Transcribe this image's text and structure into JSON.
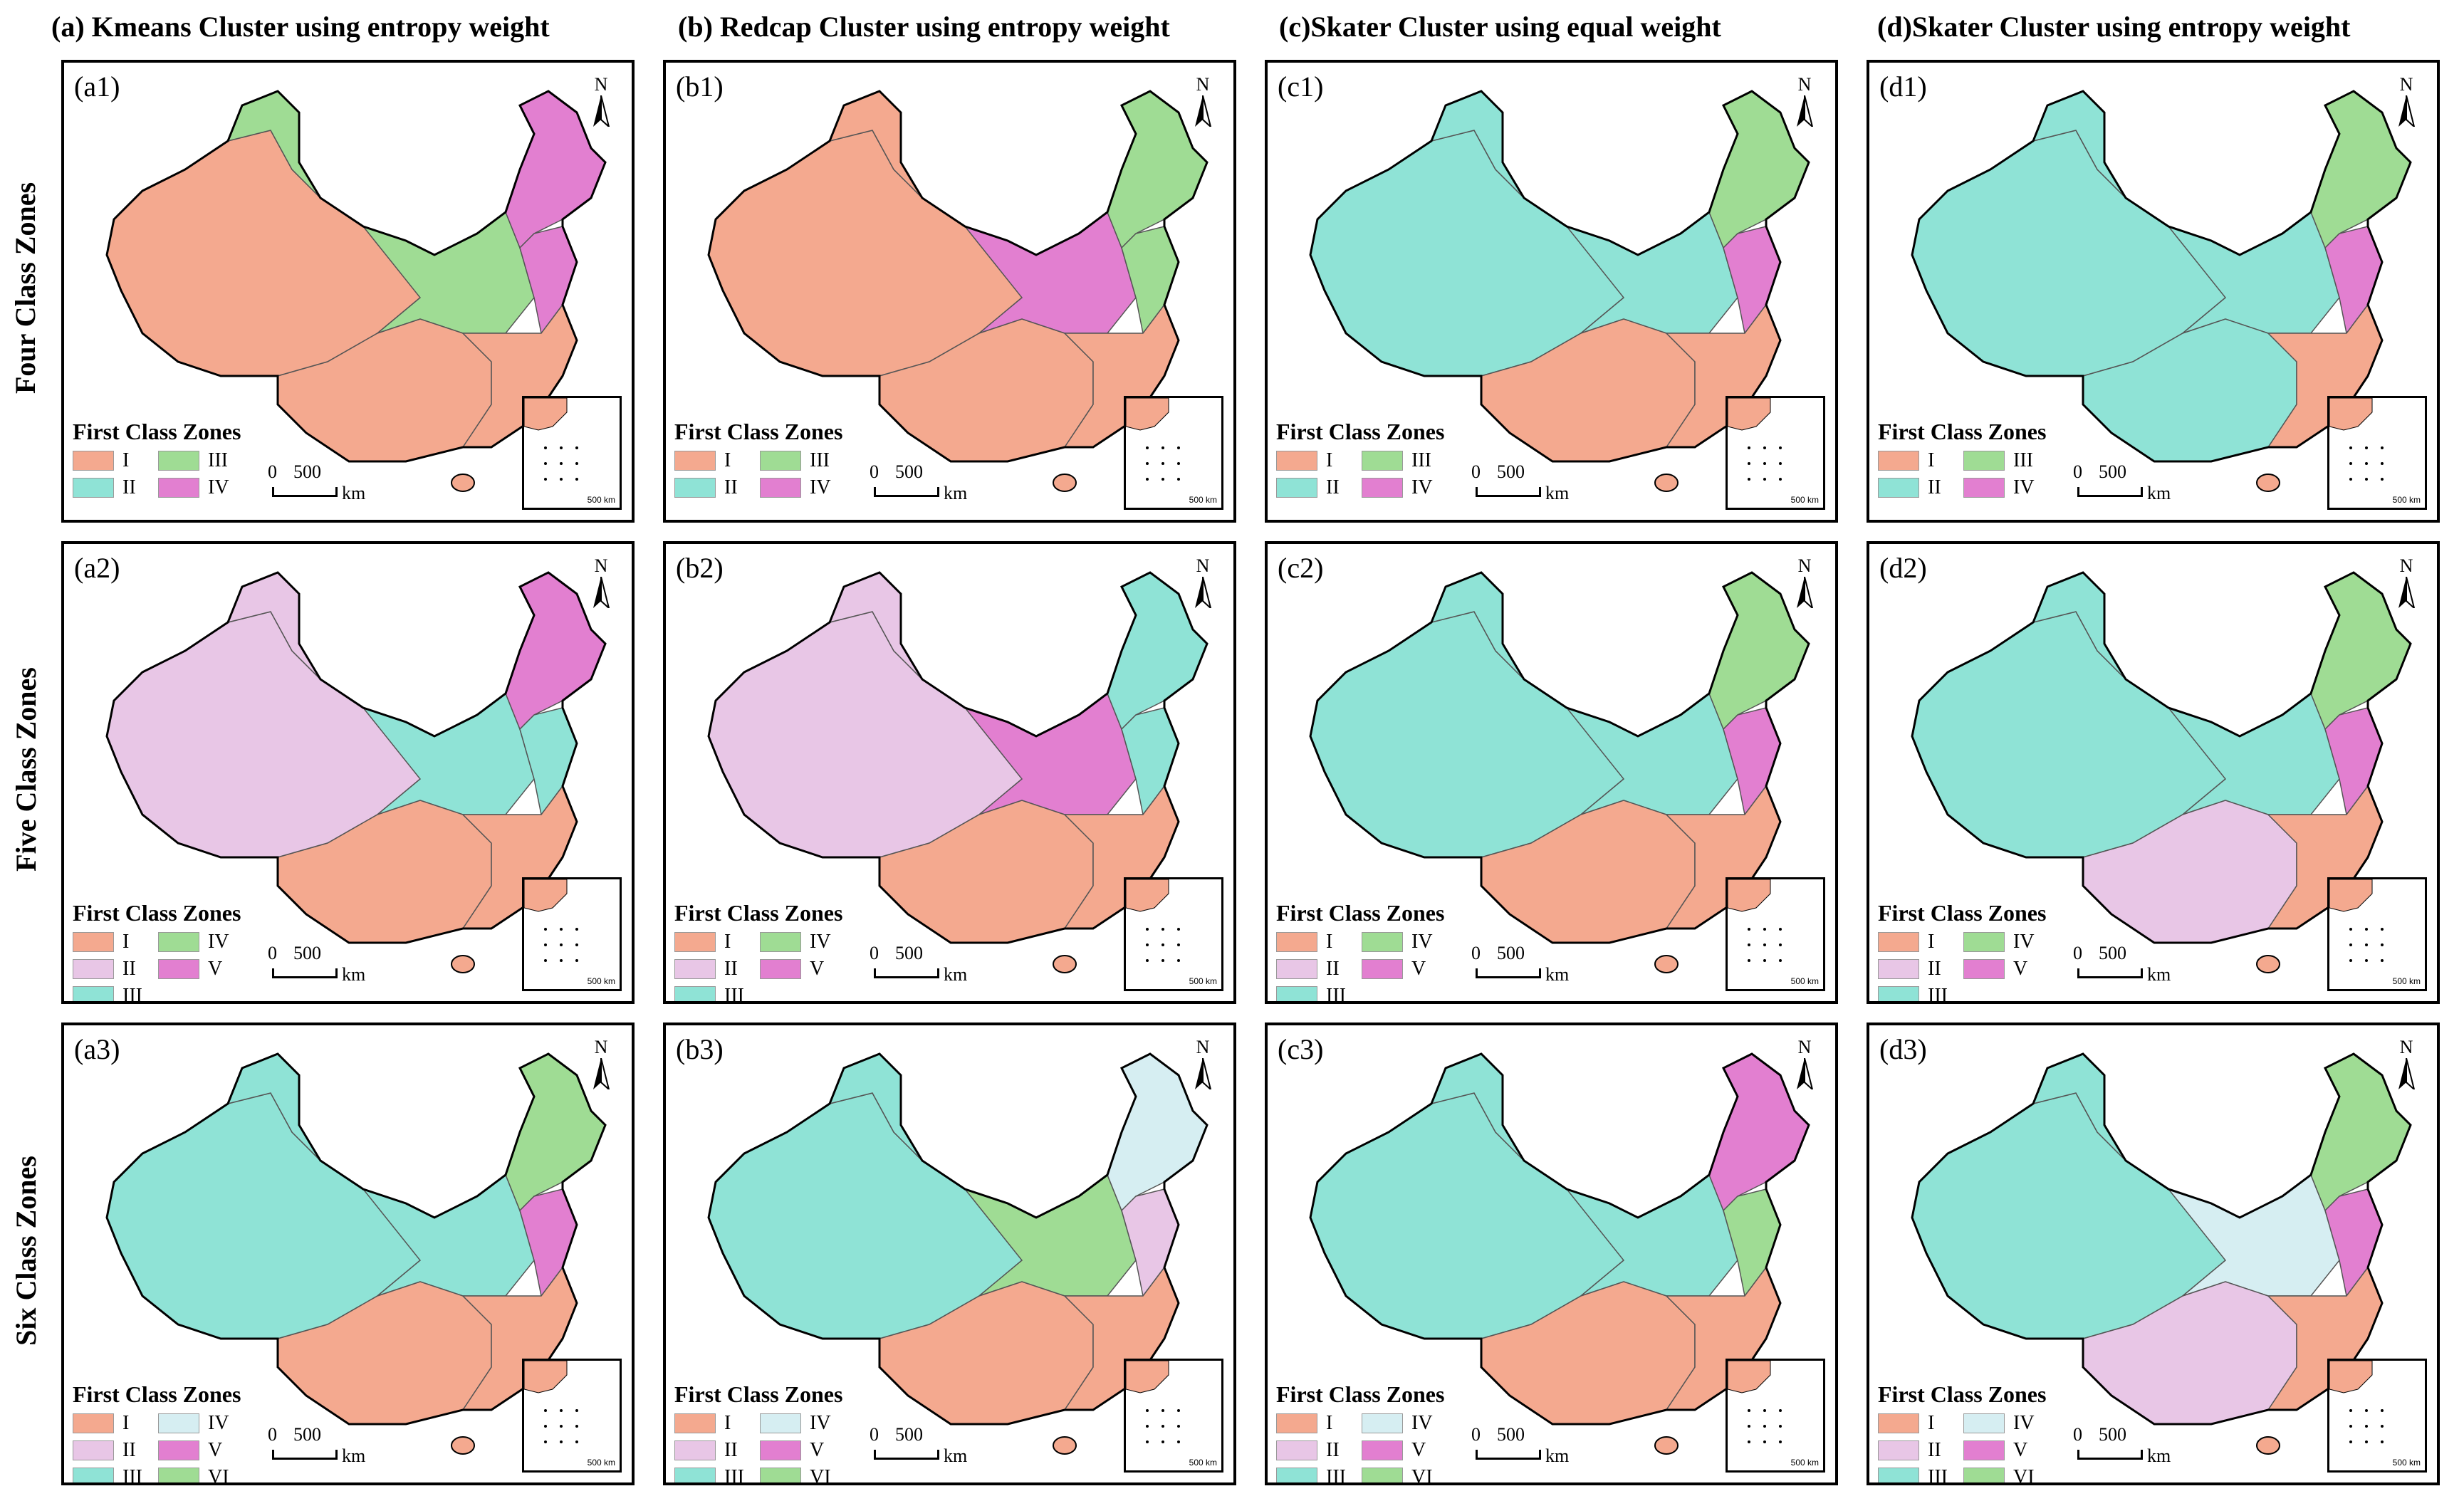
{
  "columns": [
    {
      "title": "(a) Kmeans Cluster using entropy weight"
    },
    {
      "title": "(b) Redcap Cluster using entropy weight"
    },
    {
      "title": "(c)Skater Cluster using equal weight"
    },
    {
      "title": "(d)Skater Cluster using entropy weight"
    }
  ],
  "rows": [
    {
      "title": "Four Class Zones"
    },
    {
      "title": "Five Class Zones"
    },
    {
      "title": "Six Class Zones"
    }
  ],
  "zone_colors": {
    "I": "#f4a98f",
    "II": "#e8c6e6",
    "III": "#8fe3d6",
    "IV": "#d6eef2",
    "V": "#e27fd0",
    "VI": "#9fdc94",
    "four_III": "#9fdc94",
    "four_IV": "#e27fd0",
    "five_IV": "#9fdc94",
    "five_V": "#e27fd0"
  },
  "legend_title": "First Class Zones",
  "north_label": "N",
  "scale": {
    "zero": "0",
    "dist": "500",
    "unit": "km",
    "inset_dist": "500",
    "inset_unit": "km"
  },
  "legends": {
    "four": [
      "I",
      "III",
      "II",
      "IV"
    ],
    "five": [
      "I",
      "IV",
      "II",
      "V",
      "III"
    ],
    "six": [
      "I",
      "IV",
      "II",
      "V",
      "III",
      "VI"
    ]
  },
  "panels": [
    {
      "label": "(a1)",
      "classes": "four",
      "west": "I",
      "north_west": "III",
      "center": "III",
      "north_east": "IV",
      "east": "IV",
      "south": "I",
      "south_east": "I"
    },
    {
      "label": "(b1)",
      "classes": "four",
      "west": "I",
      "north_west": "I",
      "center": "IV",
      "north_east": "III",
      "east": "III",
      "south": "I",
      "south_east": "I"
    },
    {
      "label": "(c1)",
      "classes": "four",
      "west": "II",
      "north_west": "II",
      "center": "II",
      "north_east": "III",
      "east": "IV",
      "south": "I",
      "south_east": "I"
    },
    {
      "label": "(d1)",
      "classes": "four",
      "west": "II",
      "north_west": "II",
      "center": "II",
      "north_east": "III",
      "east": "IV",
      "south": "II",
      "south_east": "I"
    },
    {
      "label": "(a2)",
      "classes": "five",
      "west": "II",
      "north_west": "II",
      "center": "III",
      "north_east": "V",
      "east": "III",
      "south": "I",
      "south_east": "I"
    },
    {
      "label": "(b2)",
      "classes": "five",
      "west": "II",
      "north_west": "II",
      "center": "V",
      "north_east": "III",
      "east": "III",
      "south": "I",
      "south_east": "I"
    },
    {
      "label": "(c2)",
      "classes": "five",
      "west": "III",
      "north_west": "III",
      "center": "III",
      "north_east": "IV",
      "east": "V",
      "south": "I",
      "south_east": "I"
    },
    {
      "label": "(d2)",
      "classes": "five",
      "west": "III",
      "north_west": "III",
      "center": "III",
      "north_east": "IV",
      "east": "V",
      "south": "II",
      "south_east": "I"
    },
    {
      "label": "(a3)",
      "classes": "six",
      "west": "III",
      "north_west": "III",
      "center": "III",
      "north_east": "VI",
      "east": "V",
      "south": "I",
      "south_east": "I"
    },
    {
      "label": "(b3)",
      "classes": "six",
      "west": "III",
      "north_west": "III",
      "center": "VI",
      "north_east": "IV",
      "east": "II",
      "south": "I",
      "south_east": "I"
    },
    {
      "label": "(c3)",
      "classes": "six",
      "west": "III",
      "north_west": "III",
      "center": "III",
      "north_east": "V",
      "east": "VI",
      "south": "I",
      "south_east": "I"
    },
    {
      "label": "(d3)",
      "classes": "six",
      "west": "III",
      "north_west": "III",
      "center": "IV",
      "north_east": "VI",
      "east": "V",
      "south": "II",
      "south_east": "I"
    }
  ]
}
